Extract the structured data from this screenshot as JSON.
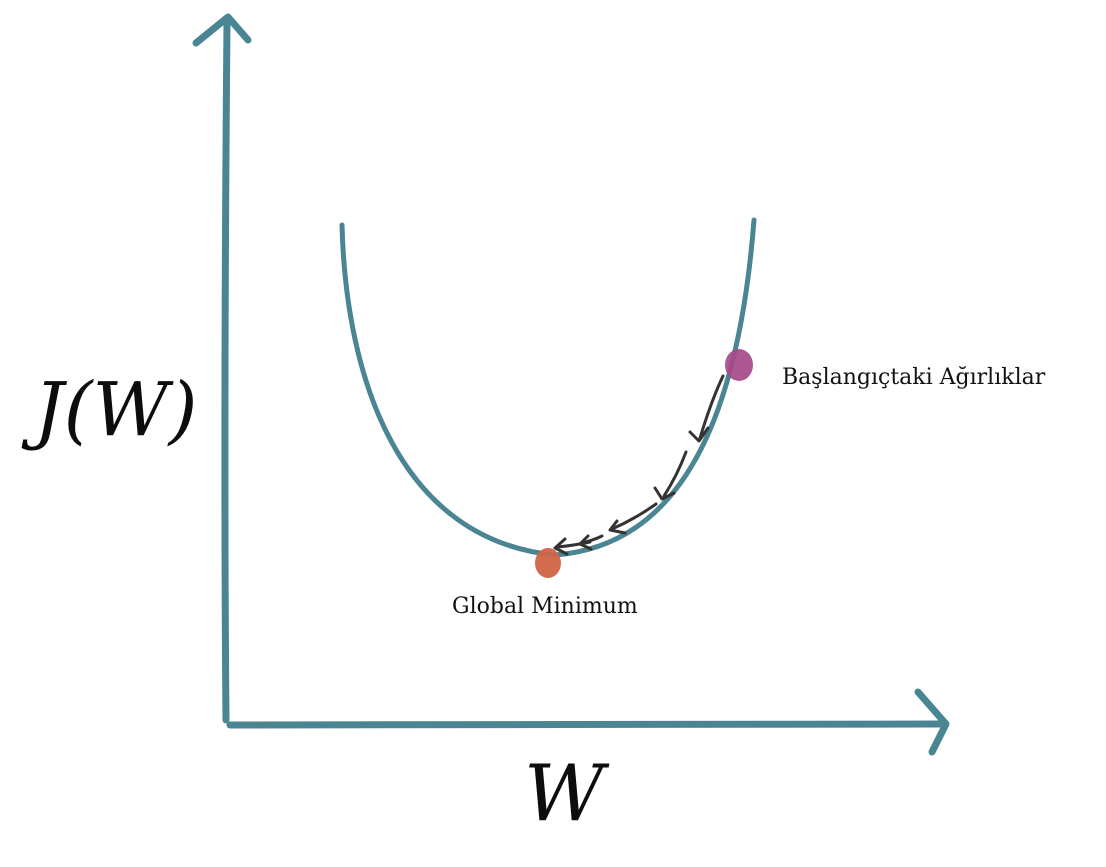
{
  "diagram": {
    "y_axis_label": "J(W)",
    "x_axis_label": "W",
    "initial_weights_label": "Başlangıçtaki Ağırlıklar",
    "global_minimum_label": "Global Minimum",
    "colors": {
      "axes": "#4a8593",
      "curve": "#4a8593",
      "initial_point": "#a64a8a",
      "minimum_point": "#cf6545",
      "step_arrows": "#333333"
    }
  }
}
